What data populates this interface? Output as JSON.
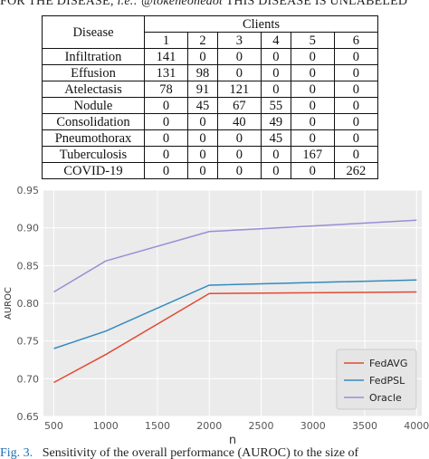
{
  "caption_top": {
    "prefix": "FOR THE DISEASE; ",
    "italic": "i.e.: @tokeneonedot",
    "suffix": " THIS DISEASE IS UNLABELED"
  },
  "table": {
    "disease_header": "Disease",
    "clients_header": "Clients",
    "client_ids": [
      "1",
      "2",
      "3",
      "4",
      "5",
      "6"
    ],
    "rows": [
      {
        "disease": "Infiltration",
        "values": [
          "141",
          "0",
          "0",
          "0",
          "0",
          "0"
        ]
      },
      {
        "disease": "Effusion",
        "values": [
          "131",
          "98",
          "0",
          "0",
          "0",
          "0"
        ]
      },
      {
        "disease": "Atelectasis",
        "values": [
          "78",
          "91",
          "121",
          "0",
          "0",
          "0"
        ]
      },
      {
        "disease": "Nodule",
        "values": [
          "0",
          "45",
          "67",
          "55",
          "0",
          "0"
        ]
      },
      {
        "disease": "Consolidation",
        "values": [
          "0",
          "0",
          "40",
          "49",
          "0",
          "0"
        ]
      },
      {
        "disease": "Pneumothorax",
        "values": [
          "0",
          "0",
          "0",
          "45",
          "0",
          "0"
        ]
      },
      {
        "disease": "Tuberculosis",
        "values": [
          "0",
          "0",
          "0",
          "0",
          "167",
          "0"
        ]
      },
      {
        "disease": "COVID-19",
        "values": [
          "0",
          "0",
          "0",
          "0",
          "0",
          "262"
        ]
      }
    ]
  },
  "chart_data": {
    "type": "line",
    "xlabel": "n",
    "ylabel": "AUROC",
    "xlim": [
      400,
      4050
    ],
    "ylim": [
      0.65,
      0.95
    ],
    "xticks": [
      "500",
      "1000",
      "1500",
      "2000",
      "2500",
      "3000",
      "3500",
      "4000"
    ],
    "yticks": [
      "0.65",
      "0.70",
      "0.75",
      "0.80",
      "0.85",
      "0.90",
      "0.95"
    ],
    "grid": true,
    "legend_position": "lower-right",
    "background": "#ebebeb",
    "series": [
      {
        "name": "FedAVG",
        "color": "#e24a33",
        "x": [
          500,
          1000,
          2000,
          4000
        ],
        "y": [
          0.695,
          0.732,
          0.813,
          0.815
        ]
      },
      {
        "name": "FedPSL",
        "color": "#348abd",
        "x": [
          500,
          1000,
          2000,
          4000
        ],
        "y": [
          0.74,
          0.763,
          0.824,
          0.831
        ]
      },
      {
        "name": "Oracle",
        "color": "#988ed5",
        "x": [
          500,
          1000,
          2000,
          4000
        ],
        "y": [
          0.815,
          0.856,
          0.895,
          0.91
        ]
      }
    ]
  },
  "caption_bottom": {
    "label": "Fig. 3.",
    "text": "Sensitivity of the overall performance (AUROC) to the size of"
  }
}
